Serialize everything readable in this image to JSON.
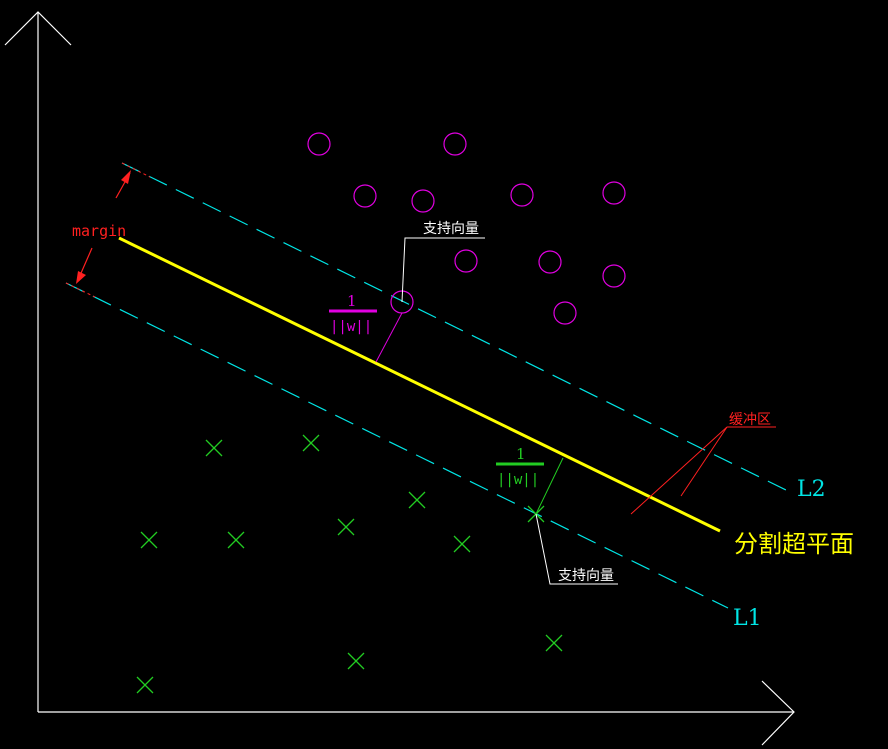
{
  "diagram": {
    "labels": {
      "margin": "margin",
      "support_vector_top": "支持向量",
      "support_vector_bottom": "支持向量",
      "buffer_zone": "缓冲区",
      "l2": "L2",
      "l1": "L1",
      "hyperplane": "分割超平面",
      "frac_top_num": "1",
      "frac_top_den": "||w||",
      "frac_bot_num": "1",
      "frac_bot_den": "||w||"
    },
    "colors": {
      "background": "#000000",
      "axes": "#ffffff",
      "hyperplane": "#ffff00",
      "boundary": "#00e5e5",
      "circle_class": "#e000e0",
      "cross_class": "#22cc22",
      "margin_annot": "#ff2020",
      "buffer_annot": "#ff2020",
      "leader": "#ffffff"
    },
    "class_circles_count": 11,
    "class_crosses_count": 11
  }
}
